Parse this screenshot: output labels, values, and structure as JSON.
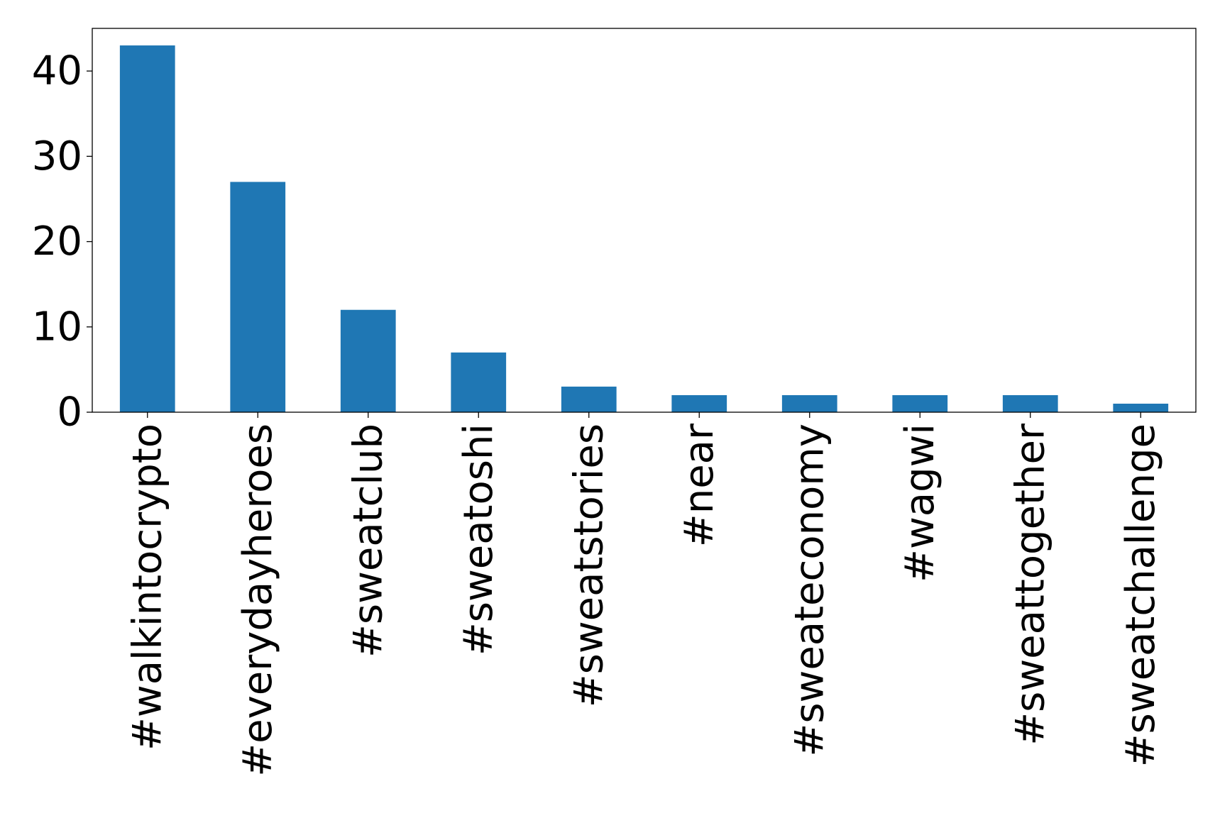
{
  "chart_data": {
    "type": "bar",
    "title": "",
    "xlabel": "",
    "ylabel": "",
    "categories": [
      "#walkintocrypto",
      "#everydayheroes",
      "#sweatclub",
      "#sweatoshi",
      "#sweatstories",
      "#near",
      "#sweateconomy",
      "#wagwi",
      "#sweattogether",
      "#sweatchallenge"
    ],
    "values": [
      43,
      27,
      12,
      7,
      3,
      2,
      2,
      2,
      2,
      1
    ],
    "yticks": [
      0,
      10,
      20,
      30,
      40
    ],
    "ylim": [
      0,
      45
    ],
    "grid": false,
    "legend": "none",
    "bar_color": "#1f77b4",
    "axis_color": "#000000"
  }
}
